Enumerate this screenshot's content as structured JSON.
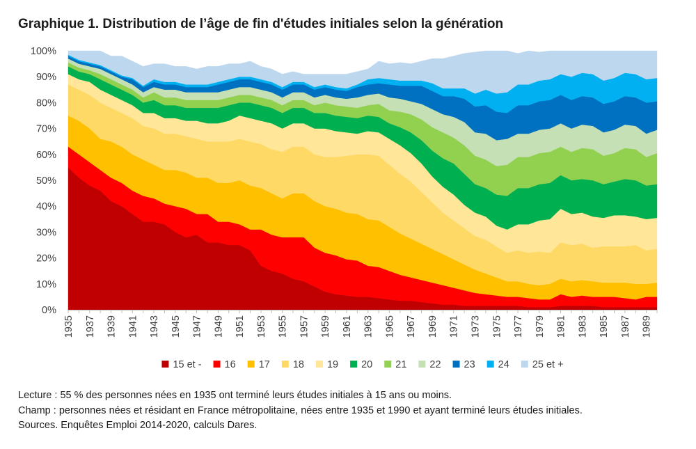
{
  "title": "Graphique 1. Distribution de l’âge de fin d'études initiales selon la génération",
  "chart_data": {
    "type": "area",
    "stacked": true,
    "title": "Graphique 1. Distribution de l’âge de fin d'études initiales selon la génération",
    "xlabel": "",
    "ylabel": "",
    "ylim": [
      0,
      100
    ],
    "yticks": [
      "0%",
      "10%",
      "20%",
      "30%",
      "40%",
      "50%",
      "60%",
      "70%",
      "80%",
      "90%",
      "100%"
    ],
    "legend_position": "bottom",
    "x": [
      1935,
      1936,
      1937,
      1938,
      1939,
      1940,
      1941,
      1942,
      1943,
      1944,
      1945,
      1946,
      1947,
      1948,
      1949,
      1950,
      1951,
      1952,
      1953,
      1954,
      1955,
      1956,
      1957,
      1958,
      1959,
      1960,
      1961,
      1962,
      1963,
      1964,
      1965,
      1966,
      1967,
      1968,
      1969,
      1970,
      1971,
      1972,
      1973,
      1974,
      1975,
      1976,
      1977,
      1978,
      1979,
      1980,
      1981,
      1982,
      1983,
      1984,
      1985,
      1986,
      1987,
      1988,
      1989,
      1990
    ],
    "xticks": [
      "1935",
      "1937",
      "1939",
      "1941",
      "1943",
      "1945",
      "1947",
      "1949",
      "1951",
      "1953",
      "1955",
      "1957",
      "1959",
      "1961",
      "1963",
      "1965",
      "1967",
      "1969",
      "1971",
      "1973",
      "1975",
      "1977",
      "1979",
      "1981",
      "1983",
      "1985",
      "1987",
      "1989"
    ],
    "series": [
      {
        "name": "15 et -",
        "color": "#C00000",
        "values": [
          55,
          51,
          48,
          46,
          42,
          40,
          37,
          34,
          34,
          33,
          30,
          28,
          29,
          26,
          26,
          25,
          25,
          23,
          17,
          15,
          14,
          12,
          11,
          9,
          7,
          6,
          5.5,
          5,
          5,
          4.5,
          4,
          3.5,
          3.5,
          3,
          2.5,
          2,
          2,
          1.5,
          1.5,
          1.5,
          1.5,
          1.5,
          1.5,
          1,
          1,
          1,
          1.5,
          1.5,
          1.5,
          1.5,
          1,
          1,
          1,
          1,
          1,
          1
        ]
      },
      {
        "name": "16",
        "color": "#FF0000",
        "values": [
          8,
          9,
          9,
          8,
          9,
          9,
          9,
          10,
          9,
          8,
          10,
          11,
          8,
          11,
          8,
          9,
          8,
          8,
          14,
          14,
          14,
          16,
          17,
          15,
          15,
          15,
          14,
          14,
          12,
          12,
          11,
          10,
          9,
          8.5,
          8,
          7.5,
          6.5,
          6,
          5,
          4.5,
          4,
          3.5,
          3.5,
          3.5,
          3,
          3,
          4.5,
          3.5,
          4,
          3.5,
          4,
          4,
          3.5,
          3,
          4,
          4
        ]
      },
      {
        "name": "17",
        "color": "#FFC000",
        "values": [
          12,
          13,
          13,
          12,
          14,
          14,
          14,
          14,
          13,
          13,
          14,
          14,
          14,
          14,
          15,
          15,
          17,
          17,
          16,
          16,
          15,
          17,
          17,
          18,
          18,
          18,
          18,
          18,
          18,
          18,
          17,
          16,
          15,
          14,
          13,
          12,
          11,
          10,
          9,
          8,
          7,
          6,
          6,
          5.5,
          5.5,
          6,
          6,
          6,
          6,
          6,
          5.5,
          5.5,
          6,
          6,
          5,
          5.5
        ]
      },
      {
        "name": "18",
        "color": "#FFD966",
        "values": [
          12,
          12,
          13,
          14,
          13,
          13,
          14,
          13,
          14,
          14,
          14,
          14,
          15,
          14,
          16,
          16,
          16,
          17,
          17,
          17,
          18,
          18,
          18,
          18,
          19,
          20,
          22,
          23,
          25,
          25,
          24,
          23,
          22,
          20,
          18,
          16,
          15,
          14,
          13,
          13,
          12,
          11,
          12,
          12,
          13,
          12,
          14,
          14,
          14,
          13,
          14,
          14,
          14,
          15,
          13,
          13
        ]
      },
      {
        "name": "19",
        "color": "#FFE699",
        "values": [
          4,
          4,
          5,
          5,
          5,
          5,
          5,
          5,
          6,
          6,
          6,
          6,
          7,
          7,
          7,
          8,
          9,
          9,
          9,
          10,
          9,
          9,
          9,
          10,
          11,
          10,
          9,
          8,
          9,
          9,
          10,
          11,
          11,
          11,
          10,
          10,
          10,
          9,
          9,
          9,
          8,
          9,
          10,
          11,
          12,
          13,
          13,
          12,
          12,
          12,
          11,
          12,
          12,
          11,
          12,
          12
        ]
      },
      {
        "name": "20",
        "color": "#00B050",
        "values": [
          3,
          3,
          3,
          4,
          4,
          4,
          4,
          4,
          5,
          5,
          5,
          5,
          5,
          6,
          6,
          6,
          5,
          6,
          6,
          6,
          6,
          6,
          6,
          6,
          6,
          6,
          6,
          6,
          6,
          6,
          6,
          7,
          8,
          9,
          10,
          11,
          12,
          12,
          11,
          11,
          12,
          13,
          14,
          14,
          14,
          14,
          13,
          13,
          13,
          14,
          13,
          13,
          14,
          14,
          13,
          13
        ]
      },
      {
        "name": "21",
        "color": "#92D050",
        "values": [
          1.5,
          1.5,
          1.5,
          2,
          2,
          2,
          2,
          2,
          3,
          3,
          3,
          3,
          3,
          3,
          3,
          3,
          3,
          3,
          3,
          3,
          3,
          3,
          3,
          3,
          4,
          4,
          4,
          4,
          4,
          5,
          5,
          6,
          7,
          8,
          9,
          10,
          10,
          11,
          11,
          11,
          11,
          12,
          12,
          12,
          12,
          12,
          11,
          11,
          12,
          12,
          11,
          11,
          12,
          12,
          11,
          12
        ]
      },
      {
        "name": "22",
        "color": "#C5E0B4",
        "values": [
          1.5,
          1.5,
          1.5,
          2,
          2,
          2,
          2,
          2,
          2,
          3,
          3,
          3,
          3,
          3,
          3,
          3,
          3,
          3,
          3,
          3,
          3,
          3,
          3,
          3,
          3,
          3,
          3,
          4,
          4,
          4,
          5,
          5,
          5,
          6,
          7,
          7,
          8,
          9,
          9,
          10,
          10,
          10,
          9,
          9,
          9,
          9,
          9,
          9,
          9,
          9,
          9,
          9,
          9,
          9,
          9,
          9
        ]
      },
      {
        "name": "23",
        "color": "#0070C0",
        "values": [
          1,
          1,
          1,
          1,
          1,
          1,
          2,
          2,
          2,
          2,
          2,
          2,
          2,
          2,
          3,
          3,
          3,
          3,
          3,
          3,
          3,
          3,
          3,
          3,
          3,
          3,
          3,
          4,
          4,
          4,
          5,
          5,
          6,
          7,
          7,
          7,
          8,
          9,
          10,
          11,
          11,
          10,
          11,
          11,
          11,
          11,
          11,
          11,
          11,
          11,
          11,
          11,
          11,
          11,
          12,
          11
        ]
      },
      {
        "name": "24",
        "color": "#00B0F0",
        "values": [
          0.5,
          0.5,
          0.5,
          0.5,
          0.5,
          0.5,
          0.5,
          0.5,
          1,
          1,
          1,
          1,
          1,
          1,
          1,
          1,
          1,
          1,
          1,
          1,
          1,
          1,
          1,
          1,
          1,
          1,
          1,
          1,
          2,
          2,
          2,
          2,
          2,
          2,
          3,
          3,
          3,
          4,
          5,
          6,
          7,
          8,
          8,
          8,
          8,
          8,
          8,
          9,
          9,
          9,
          9,
          9,
          9,
          9,
          9,
          9
        ]
      },
      {
        "name": "25 et +",
        "color": "#BDD7EE",
        "values": [
          3,
          3.5,
          4.5,
          5.5,
          5.5,
          7.5,
          6.5,
          7.5,
          6,
          7,
          6,
          7,
          6,
          7,
          6,
          6,
          5,
          6,
          5,
          5,
          5,
          4,
          3,
          5,
          4,
          5,
          5.5,
          5,
          4,
          6.5,
          6,
          7,
          6.5,
          7.5,
          9.5,
          11.5,
          12.5,
          13.5,
          16,
          15,
          16.5,
          16,
          12,
          13,
          11,
          11,
          9,
          11,
          9.5,
          10,
          14.5,
          14.5,
          12,
          12,
          14,
          13.5
        ]
      }
    ]
  },
  "notes": {
    "lecture": "Lecture : 55 % des personnes nées en 1935 ont terminé leurs études initiales à 15 ans ou moins.",
    "champ": "Champ : personnes nées et résidant en France métropolitaine, nées entre 1935 et 1990 et ayant terminé leurs études initiales.",
    "sources": "Sources. Enquêtes Emploi 2014-2020, calculs Dares."
  }
}
